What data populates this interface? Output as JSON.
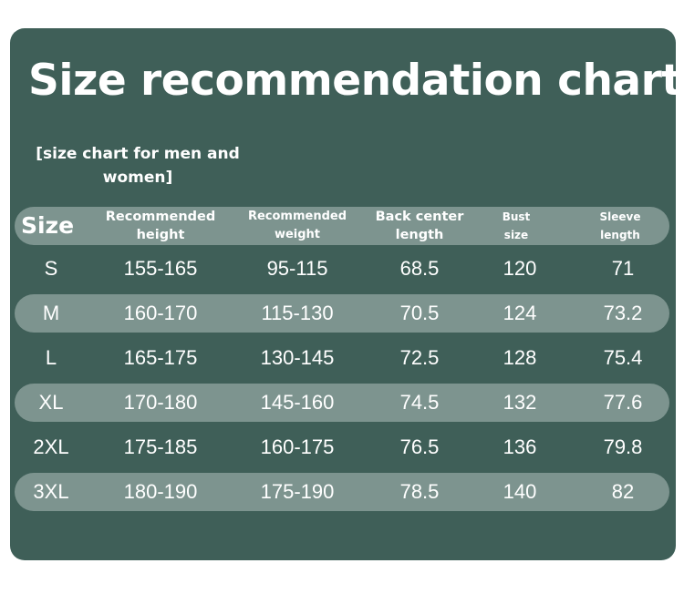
{
  "title": "Size recommendation chart",
  "subtitle": "[size chart for men and women]",
  "table": {
    "headers": [
      "Size",
      "Recommended\nheight",
      "Recommended\nweight",
      "Back center\nlength",
      "Bust\nsize",
      "Sleeve\nlength"
    ],
    "rows": [
      [
        "S",
        "155-165",
        "95-115",
        "68.5",
        "120",
        "71"
      ],
      [
        "M",
        "160-170",
        "115-130",
        "70.5",
        "124",
        "73.2"
      ],
      [
        "L",
        "165-175",
        "130-145",
        "72.5",
        "128",
        "75.4"
      ],
      [
        "XL",
        "170-180",
        "145-160",
        "74.5",
        "132",
        "77.6"
      ],
      [
        "2XL",
        "175-185",
        "160-175",
        "76.5",
        "136",
        "79.8"
      ],
      [
        "3XL",
        "180-190",
        "175-190",
        "78.5",
        "140",
        "82"
      ]
    ]
  },
  "colors": {
    "panel": "#3f5f58",
    "band": "#7d948f",
    "text": "#ffffff"
  }
}
